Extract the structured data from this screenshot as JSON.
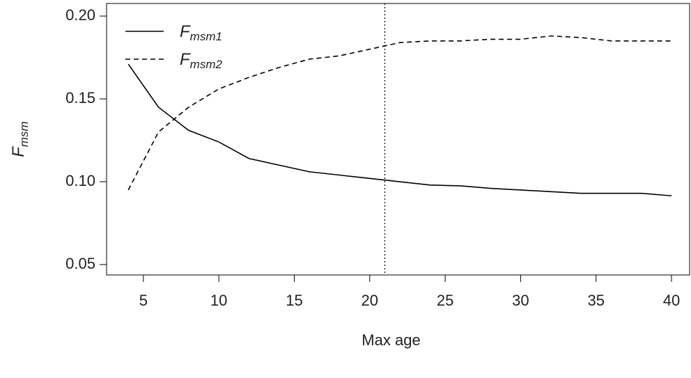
{
  "chart_data": {
    "type": "line",
    "xlabel": "Max age",
    "ylabel": "F",
    "ylabel_sub": "msm",
    "x": [
      4,
      6,
      8,
      10,
      12,
      14,
      16,
      18,
      20,
      22,
      24,
      26,
      28,
      30,
      32,
      34,
      36,
      38,
      40
    ],
    "series": [
      {
        "name": "F",
        "subscript": "msm1",
        "color": "#000000",
        "dash": "solid",
        "values": [
          0.171,
          0.145,
          0.131,
          0.124,
          0.114,
          0.11,
          0.106,
          0.104,
          0.102,
          0.1,
          0.098,
          0.0975,
          0.096,
          0.095,
          0.094,
          0.093,
          0.093,
          0.093,
          0.0915
        ]
      },
      {
        "name": "F",
        "subscript": "msm2",
        "color": "#000000",
        "dash": "dashed",
        "values": [
          0.095,
          0.13,
          0.145,
          0.156,
          0.163,
          0.169,
          0.174,
          0.176,
          0.18,
          0.184,
          0.185,
          0.185,
          0.186,
          0.186,
          0.188,
          0.187,
          0.185,
          0.185,
          0.185
        ]
      }
    ],
    "vline": 21,
    "xlim": [
      2.56,
      41.2
    ],
    "xticks": [
      5,
      10,
      15,
      20,
      25,
      30,
      35,
      40
    ],
    "ylim": [
      0.0437,
      0.2076
    ],
    "yticks": [
      {
        "value": 0.05,
        "label": "0.05"
      },
      {
        "value": 0.1,
        "label": "0.10"
      },
      {
        "value": 0.15,
        "label": "0.15"
      },
      {
        "value": 0.2,
        "label": "0.20"
      }
    ],
    "legend": "top-left"
  }
}
